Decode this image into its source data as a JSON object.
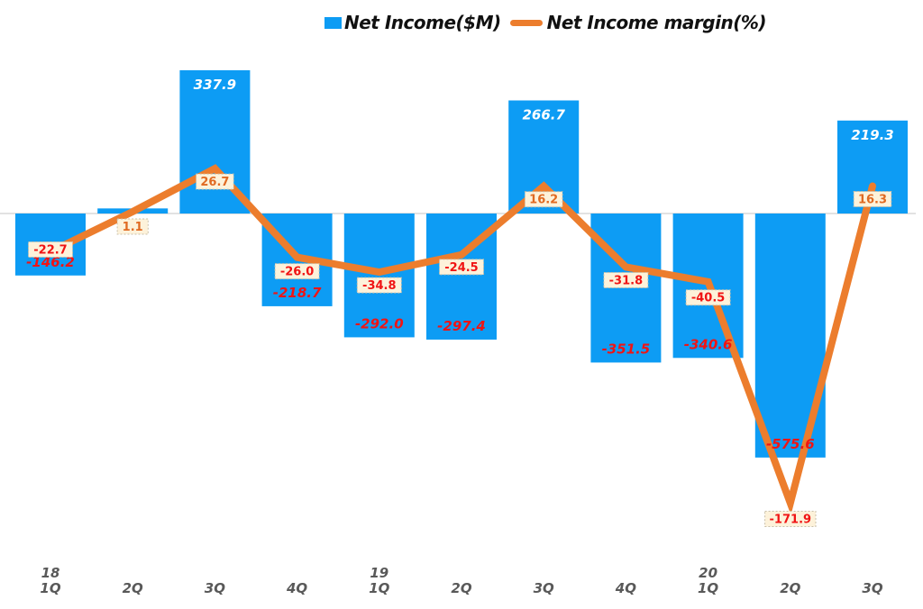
{
  "legend": {
    "series1": "Net Income($M)",
    "series2": "Net Income margin(%)"
  },
  "colors": {
    "bar": "#0D9CF4",
    "line": "#EC7D2D",
    "negative_label": "#F01414",
    "positive_margin_label": "#E06A22",
    "positive_bar_label": "#FFFFFF",
    "label_box_bg": "#FDF2DA",
    "label_box_border": "#C9BFA8",
    "axis_line": "#D9D9D9",
    "axis_text": "#595959"
  },
  "chart_data": {
    "type": "bar+line",
    "title": "",
    "categories": [
      "1Q",
      "2Q",
      "3Q",
      "4Q",
      "1Q",
      "2Q",
      "3Q",
      "4Q",
      "1Q",
      "2Q",
      "3Q"
    ],
    "year_markers": [
      {
        "index": 0,
        "label": "18"
      },
      {
        "index": 4,
        "label": "19"
      },
      {
        "index": 8,
        "label": "20"
      }
    ],
    "series": [
      {
        "name": "Net Income($M)",
        "type": "bar",
        "values": [
          -146.2,
          12,
          337.9,
          -218.7,
          -292.0,
          -297.4,
          266.7,
          -351.5,
          -340.6,
          -575.6,
          219.3
        ],
        "labels": [
          "-146.2",
          "",
          "337.9",
          "-218.7",
          "-292.0",
          "-297.4",
          "266.7",
          "-351.5",
          "-340.6",
          "-575.6",
          "219.3"
        ]
      },
      {
        "name": "Net Income margin(%)",
        "type": "line",
        "values": [
          -22.7,
          1.1,
          26.7,
          -26.0,
          -34.8,
          -24.5,
          16.2,
          -31.8,
          -40.5,
          -171.9,
          16.3
        ],
        "labels": [
          "-22.7",
          "1.1",
          "26.7",
          "-26.0",
          "-34.8",
          "-24.5",
          "16.2",
          "-31.8",
          "-40.5",
          "-171.9",
          "16.3"
        ]
      }
    ],
    "legend_position": "top",
    "grid": false
  }
}
